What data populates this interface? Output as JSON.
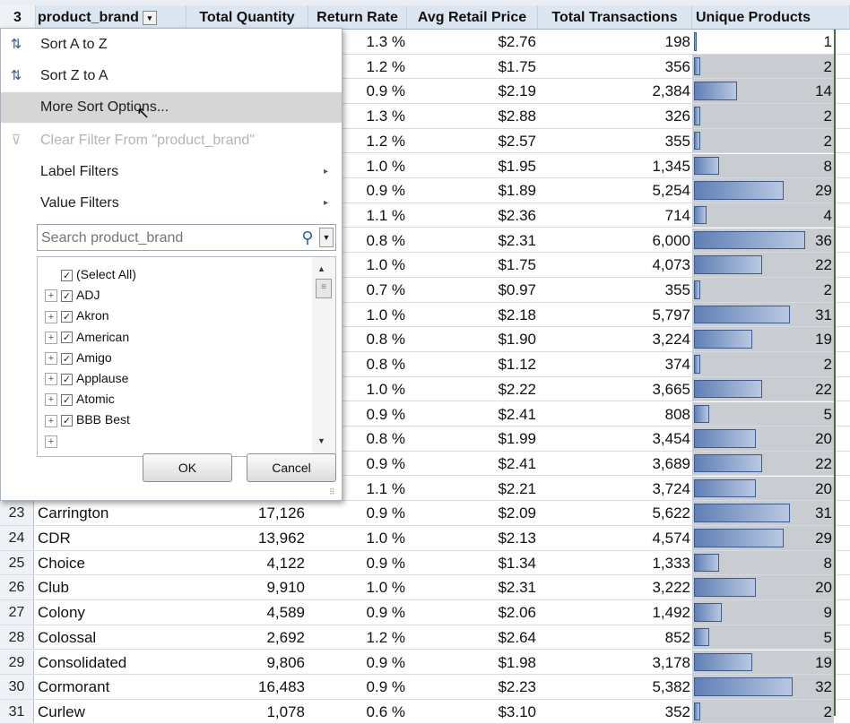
{
  "header": {
    "row_number": "3",
    "columns": [
      {
        "label": "product_brand"
      },
      {
        "label": "Total Quantity"
      },
      {
        "label": "Return Rate"
      },
      {
        "label": "Avg Retail Price"
      },
      {
        "label": "Total Transactions"
      },
      {
        "label": "Unique Products"
      }
    ],
    "filter_button_icon": "filter-sort-dropdown-icon"
  },
  "unique_products_max": 36,
  "hidden_rows": [
    {
      "rr": "1.3 %",
      "arp": "$2.76",
      "tt": "198",
      "up": 1
    },
    {
      "rr": "1.2 %",
      "arp": "$1.75",
      "tt": "356",
      "up": 2
    },
    {
      "rr": "0.9 %",
      "arp": "$2.19",
      "tt": "2,384",
      "up": 14
    },
    {
      "rr": "1.3 %",
      "arp": "$2.88",
      "tt": "326",
      "up": 2
    },
    {
      "rr": "1.2 %",
      "arp": "$2.57",
      "tt": "355",
      "up": 2
    },
    {
      "rr": "1.0 %",
      "arp": "$1.95",
      "tt": "1,345",
      "up": 8
    },
    {
      "rr": "0.9 %",
      "arp": "$1.89",
      "tt": "5,254",
      "up": 29
    },
    {
      "rr": "1.1 %",
      "arp": "$2.36",
      "tt": "714",
      "up": 4
    },
    {
      "rr": "0.8 %",
      "arp": "$2.31",
      "tt": "6,000",
      "up": 36
    },
    {
      "rr": "1.0 %",
      "arp": "$1.75",
      "tt": "4,073",
      "up": 22
    },
    {
      "rr": "0.7 %",
      "arp": "$0.97",
      "tt": "355",
      "up": 2
    },
    {
      "rr": "1.0 %",
      "arp": "$2.18",
      "tt": "5,797",
      "up": 31
    },
    {
      "rr": "0.8 %",
      "arp": "$1.90",
      "tt": "3,224",
      "up": 19
    },
    {
      "rr": "0.8 %",
      "arp": "$1.12",
      "tt": "374",
      "up": 2
    },
    {
      "rr": "1.0 %",
      "arp": "$2.22",
      "tt": "3,665",
      "up": 22
    },
    {
      "rr": "0.9 %",
      "arp": "$2.41",
      "tt": "808",
      "up": 5
    },
    {
      "rr": "0.8 %",
      "arp": "$1.99",
      "tt": "3,454",
      "up": 20
    },
    {
      "rr": "0.9 %",
      "arp": "$2.41",
      "tt": "3,689",
      "up": 22
    },
    {
      "rr": "1.1 %",
      "arp": "$2.21",
      "tt": "3,724",
      "up": 20
    }
  ],
  "rows": [
    {
      "num": "23",
      "brand": "Carrington",
      "qty": "17,126",
      "rr": "0.9 %",
      "arp": "$2.09",
      "tt": "5,622",
      "up": 31
    },
    {
      "num": "24",
      "brand": "CDR",
      "qty": "13,962",
      "rr": "1.0 %",
      "arp": "$2.13",
      "tt": "4,574",
      "up": 29
    },
    {
      "num": "25",
      "brand": "Choice",
      "qty": "4,122",
      "rr": "0.9 %",
      "arp": "$1.34",
      "tt": "1,333",
      "up": 8
    },
    {
      "num": "26",
      "brand": "Club",
      "qty": "9,910",
      "rr": "1.0 %",
      "arp": "$2.31",
      "tt": "3,222",
      "up": 20
    },
    {
      "num": "27",
      "brand": "Colony",
      "qty": "4,589",
      "rr": "0.9 %",
      "arp": "$2.06",
      "tt": "1,492",
      "up": 9
    },
    {
      "num": "28",
      "brand": "Colossal",
      "qty": "2,692",
      "rr": "1.2 %",
      "arp": "$2.64",
      "tt": "852",
      "up": 5
    },
    {
      "num": "29",
      "brand": "Consolidated",
      "qty": "9,806",
      "rr": "0.9 %",
      "arp": "$1.98",
      "tt": "3,178",
      "up": 19
    },
    {
      "num": "30",
      "brand": "Cormorant",
      "qty": "16,483",
      "rr": "0.9 %",
      "arp": "$2.23",
      "tt": "5,382",
      "up": 32
    },
    {
      "num": "31",
      "brand": "Curlew",
      "qty": "1,078",
      "rr": "0.6 %",
      "arp": "$3.10",
      "tt": "352",
      "up": 2
    }
  ],
  "dropdown": {
    "menu": [
      {
        "key": "sort_az",
        "label": "Sort A to Z",
        "icon": "sort-ascending-icon",
        "state": "normal"
      },
      {
        "key": "sort_za",
        "label": "Sort Z to A",
        "icon": "sort-descending-icon",
        "state": "normal"
      },
      {
        "key": "more_sort",
        "label": "More Sort Options...",
        "icon": "",
        "state": "highlighted"
      },
      {
        "key": "clear_filter",
        "label": "Clear Filter From \"product_brand\"",
        "icon": "clear-filter-icon",
        "state": "disabled"
      },
      {
        "key": "label_filters",
        "label": "Label Filters",
        "icon": "",
        "state": "submenu"
      },
      {
        "key": "value_filters",
        "label": "Value Filters",
        "icon": "",
        "state": "submenu"
      }
    ],
    "search_placeholder": "Search product_brand",
    "list": [
      {
        "label": "(Select All)",
        "checked": true,
        "expandable": false
      },
      {
        "label": "ADJ",
        "checked": true,
        "expandable": true
      },
      {
        "label": "Akron",
        "checked": true,
        "expandable": true
      },
      {
        "label": "American",
        "checked": true,
        "expandable": true
      },
      {
        "label": "Amigo",
        "checked": true,
        "expandable": true
      },
      {
        "label": "Applause",
        "checked": true,
        "expandable": true
      },
      {
        "label": "Atomic",
        "checked": true,
        "expandable": true
      },
      {
        "label": "BBB Best",
        "checked": true,
        "expandable": true
      }
    ],
    "ok_label": "OK",
    "cancel_label": "Cancel"
  }
}
